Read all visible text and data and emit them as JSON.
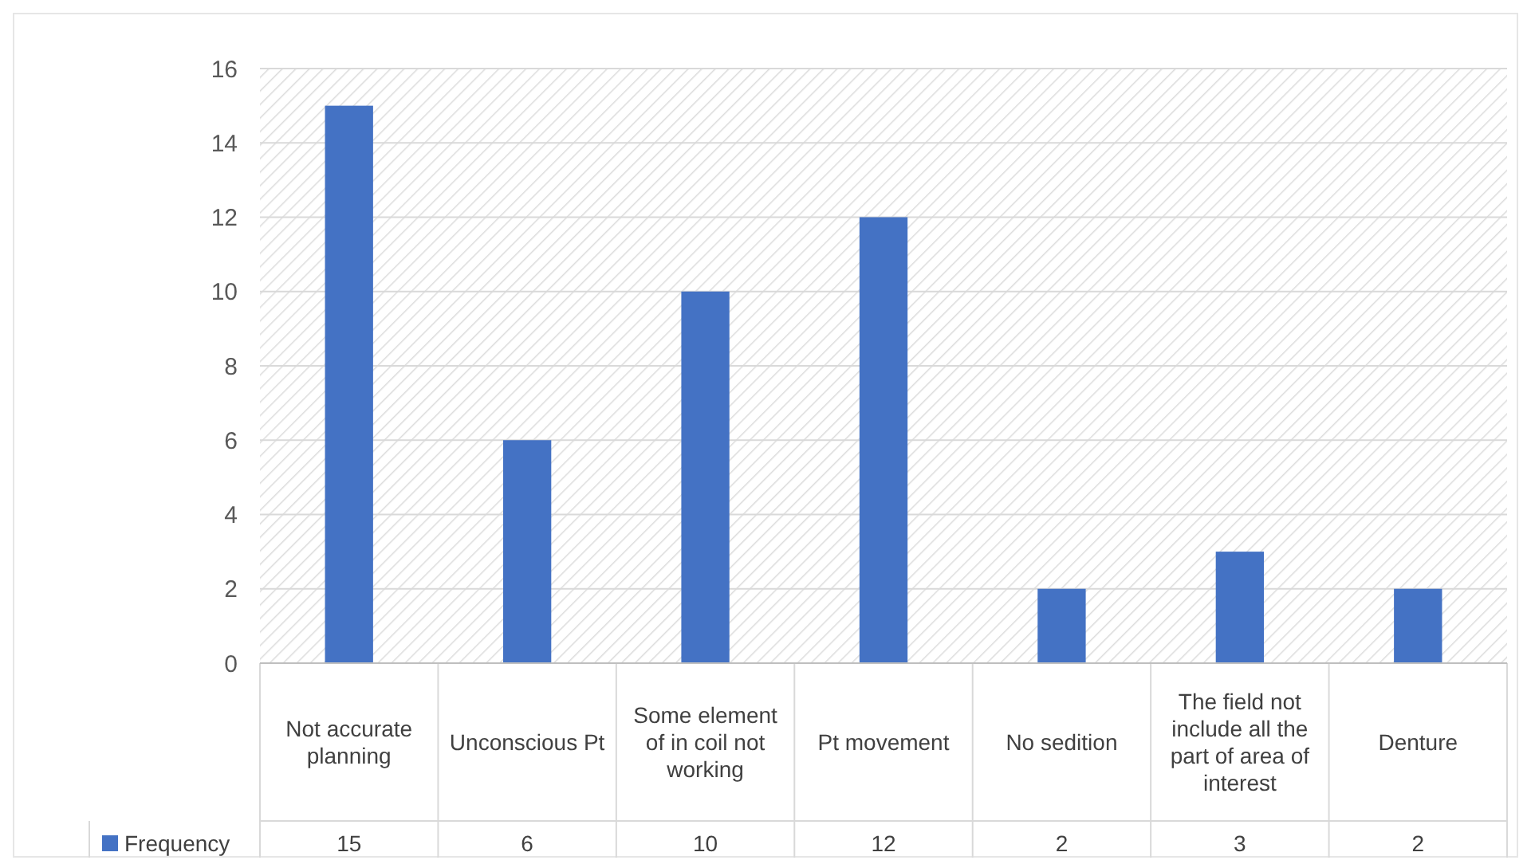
{
  "chart_data": {
    "type": "bar",
    "categories": [
      "Not accurate planning",
      "Unconscious Pt",
      "Some element of in coil not working",
      "Pt movement",
      "No sedition",
      "The field not include all the part of area of interest",
      "Denture"
    ],
    "series": [
      {
        "name": "Frequency",
        "color": "#4472c4",
        "values": [
          15,
          6,
          10,
          12,
          2,
          3,
          2
        ]
      }
    ],
    "ylim": [
      0,
      16
    ],
    "yticks": [
      0,
      2,
      4,
      6,
      8,
      10,
      12,
      14,
      16
    ],
    "grid": "y",
    "data_labels": true,
    "legend": "bottom left"
  }
}
